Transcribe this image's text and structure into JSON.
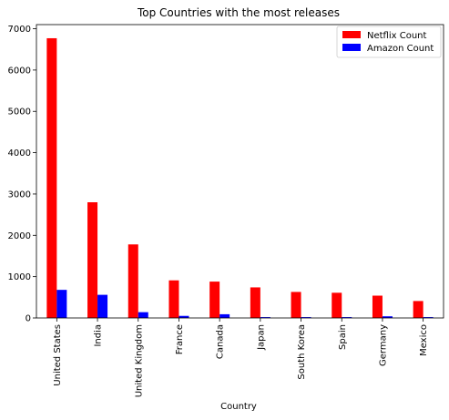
{
  "chart_data": {
    "type": "bar",
    "title": "Top Countries with the most releases",
    "xlabel": "Country",
    "ylabel": "",
    "categories": [
      "United States",
      "India",
      "United Kingdom",
      "France",
      "Canada",
      "Japan",
      "South Korea",
      "Spain",
      "Germany",
      "Mexico"
    ],
    "series": [
      {
        "name": "Netflix Count",
        "color": "#ff0000",
        "values": [
          6770,
          2800,
          1780,
          910,
          880,
          740,
          630,
          610,
          540,
          410
        ]
      },
      {
        "name": "Amazon Count",
        "color": "#0000ff",
        "values": [
          680,
          560,
          140,
          50,
          90,
          20,
          20,
          20,
          40,
          20
        ]
      }
    ],
    "ylim": [
      0,
      7100
    ],
    "yticks": [
      0,
      1000,
      2000,
      3000,
      4000,
      5000,
      6000,
      7000
    ],
    "grid": false,
    "legend_position": "top-right"
  }
}
